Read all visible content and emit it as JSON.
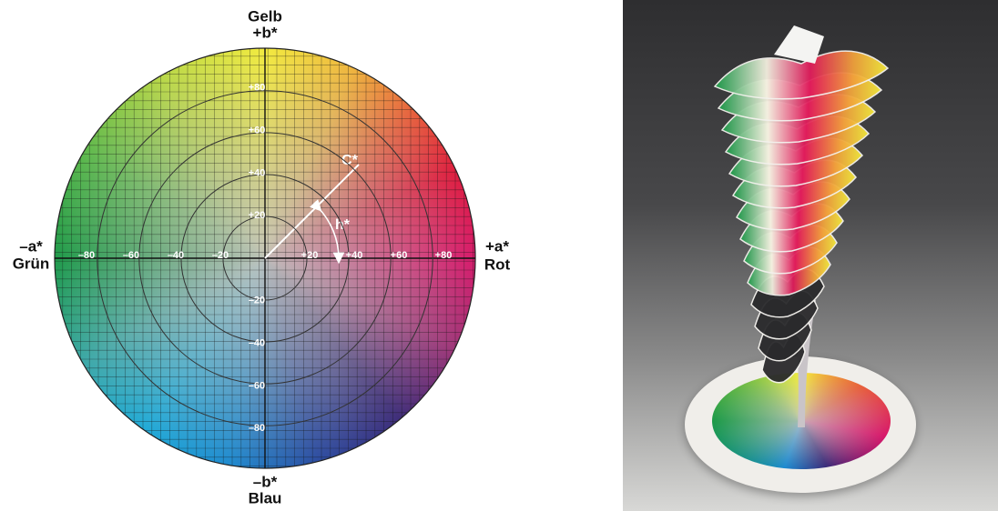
{
  "diagram": {
    "labels": {
      "top": [
        "Gelb",
        "+b*"
      ],
      "bottom": [
        "–b*",
        "Blau"
      ],
      "left": [
        "–a*",
        "Grün"
      ],
      "right": [
        "+a*",
        "Rot"
      ]
    },
    "annotations": {
      "chroma": "C*",
      "hue": "h*"
    },
    "a_ticks": [
      "–80",
      "–60",
      "–40",
      "–20",
      "+20",
      "+40",
      "+60",
      "+80"
    ],
    "b_ticks": [
      "+80",
      "+60",
      "+40",
      "+20",
      "–20",
      "–40",
      "–60",
      "–80"
    ]
  }
}
